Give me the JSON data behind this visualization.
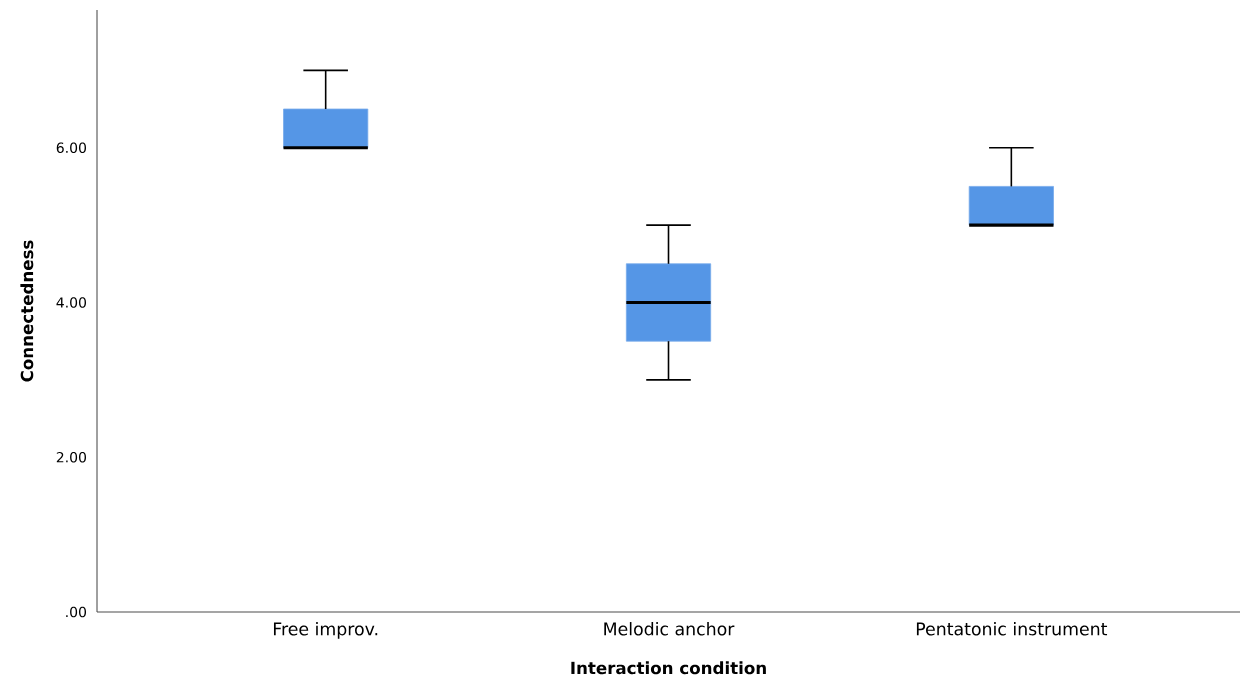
{
  "chart_data": {
    "type": "box",
    "xlabel": "Interaction condition",
    "ylabel": "Connectedness",
    "categories": [
      "Free improv.",
      "Melodic anchor",
      "Pentatonic instrument"
    ],
    "boxes": [
      {
        "low": 6,
        "q1": 6,
        "median": 6,
        "q3": 6.5,
        "high": 7
      },
      {
        "low": 3,
        "q1": 3.5,
        "median": 4,
        "q3": 4.5,
        "high": 5
      },
      {
        "low": 5,
        "q1": 5,
        "median": 5,
        "q3": 5.5,
        "high": 6
      }
    ],
    "color": "#5596e6",
    "ylim": [
      0,
      7.78
    ],
    "yticks": [
      {
        "value": 0,
        "label": ".00"
      },
      {
        "value": 2,
        "label": "2.00"
      },
      {
        "value": 4,
        "label": "4.00"
      },
      {
        "value": 6,
        "label": "6.00"
      }
    ]
  }
}
